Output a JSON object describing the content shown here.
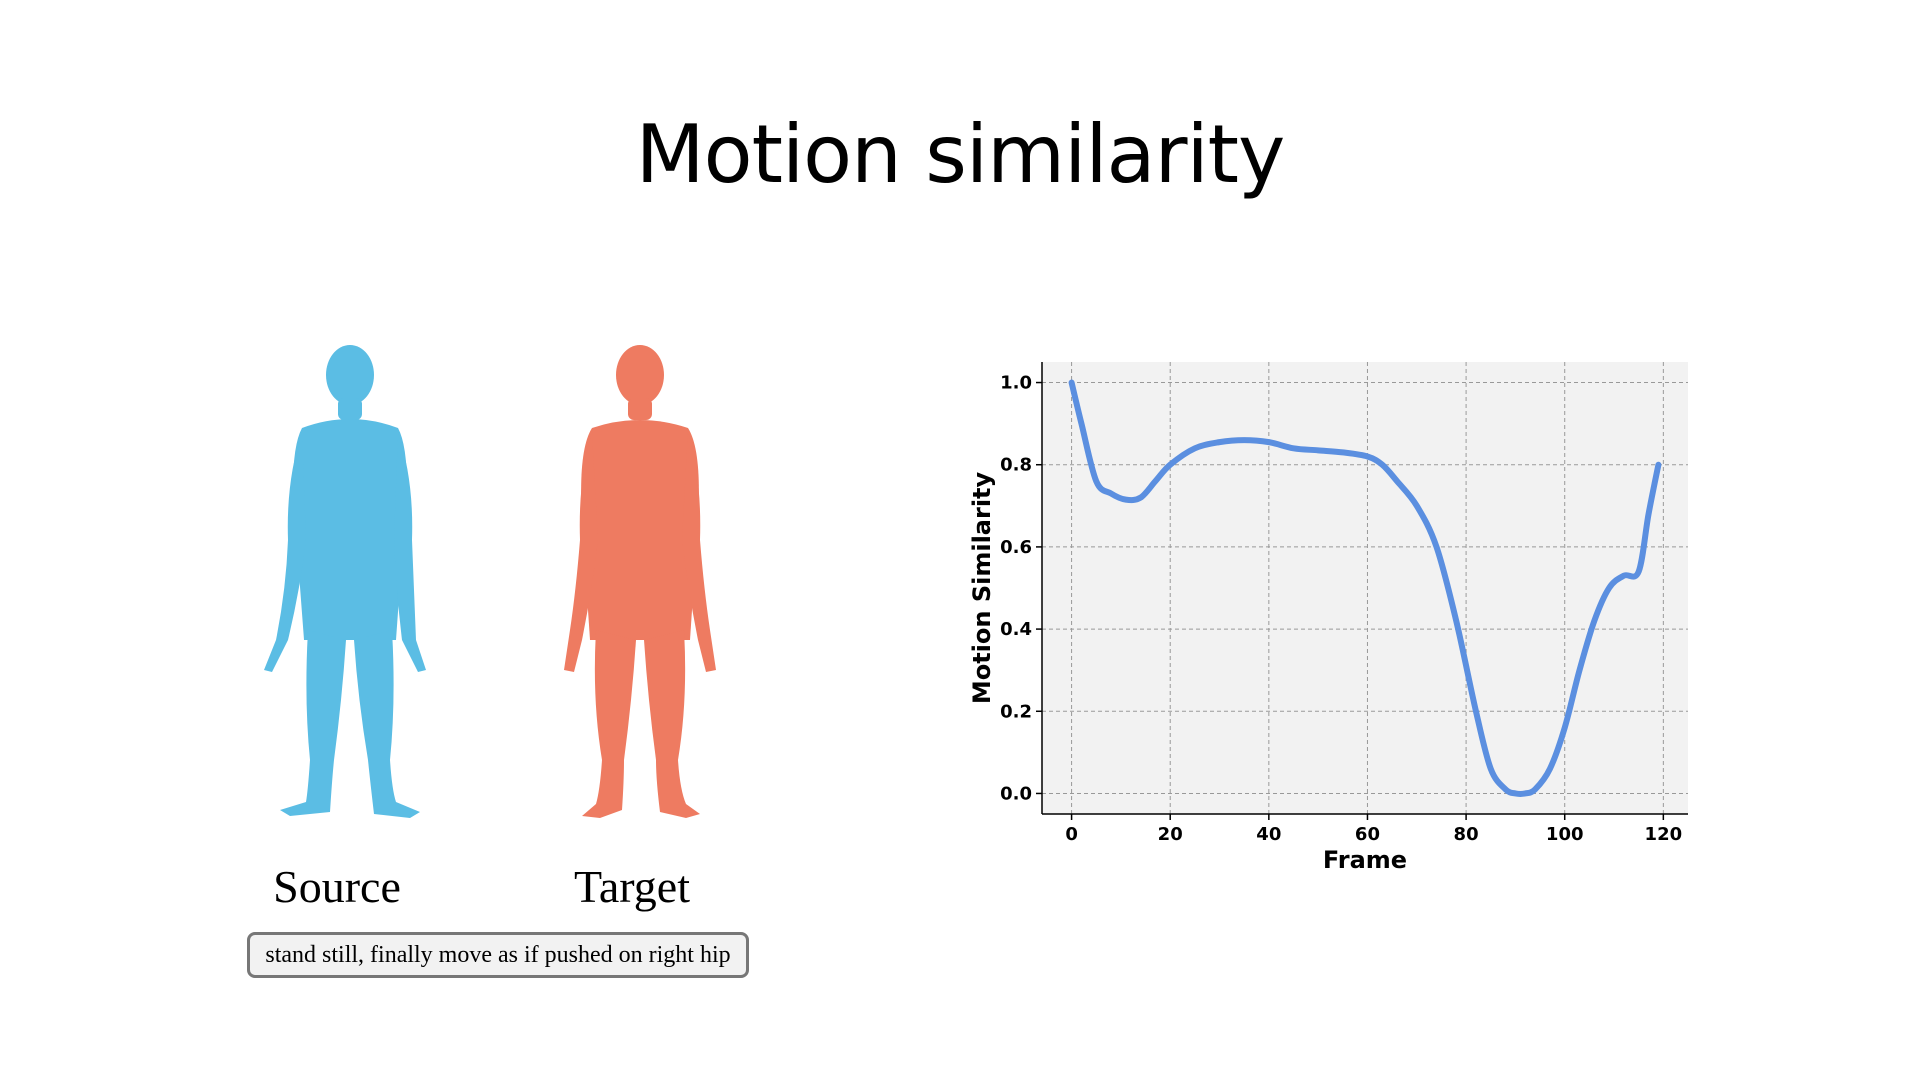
{
  "slide": {
    "title": "Motion similarity"
  },
  "figures": {
    "source_label": "Source",
    "target_label": "Target",
    "source_color": "#5bbde4",
    "target_color": "#ee7b61",
    "caption": "stand still, finally move as if pushed on right hip"
  },
  "chart_data": {
    "type": "line",
    "xlabel": "Frame",
    "ylabel": "Motion Similarity",
    "xlim": [
      -6,
      125
    ],
    "ylim": [
      -0.05,
      1.05
    ],
    "xticks": [
      0,
      20,
      40,
      60,
      80,
      100,
      120
    ],
    "yticks": [
      0.0,
      0.2,
      0.4,
      0.6,
      0.8,
      1.0
    ],
    "ytick_labels": [
      "0.0",
      "0.2",
      "0.4",
      "0.6",
      "0.8",
      "1.0"
    ],
    "grid": true,
    "background": "#f2f2f2",
    "line_color": "#5b8fe0",
    "series": [
      {
        "x": [
          0,
          2,
          5,
          8,
          11,
          14,
          17,
          20,
          25,
          30,
          35,
          40,
          45,
          50,
          55,
          60,
          63,
          66,
          70,
          74,
          78,
          82,
          85,
          88,
          90,
          92,
          94,
          97,
          100,
          103,
          106,
          109,
          112,
          115,
          117,
          119
        ],
        "y": [
          1.0,
          0.9,
          0.76,
          0.73,
          0.715,
          0.72,
          0.76,
          0.8,
          0.84,
          0.855,
          0.86,
          0.855,
          0.84,
          0.835,
          0.83,
          0.82,
          0.8,
          0.76,
          0.7,
          0.6,
          0.42,
          0.2,
          0.06,
          0.01,
          0.0,
          0.0,
          0.01,
          0.06,
          0.16,
          0.3,
          0.42,
          0.5,
          0.53,
          0.54,
          0.68,
          0.8
        ]
      }
    ]
  }
}
